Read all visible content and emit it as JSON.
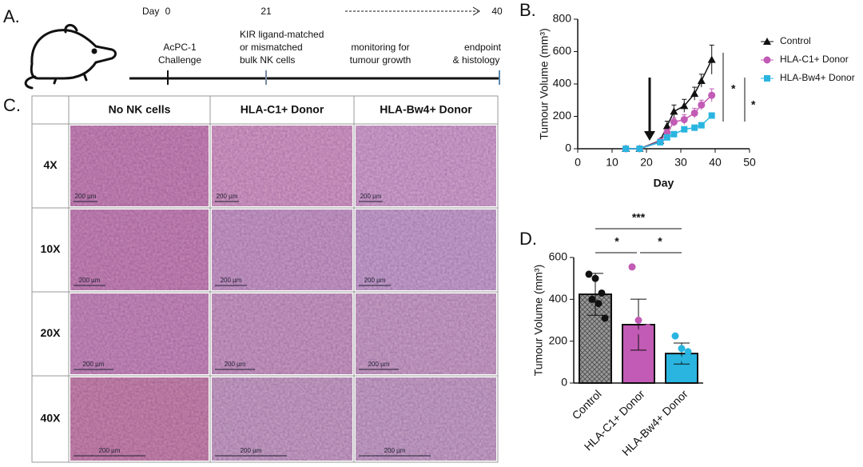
{
  "panel_labels": [
    "A.",
    "B.",
    "C.",
    "D."
  ],
  "timeline": {
    "day_label": "Day",
    "days": [
      0,
      21,
      40
    ],
    "steps": [
      [
        "AcPC-1",
        "Challenge"
      ],
      [
        "KIR ligand-matched",
        "or mismatched",
        "bulk NK cells"
      ],
      [
        "monitoring for",
        "tumour growth"
      ],
      [
        "endpoint",
        "& histology"
      ]
    ]
  },
  "histology": {
    "columns": [
      "No NK cells",
      "HLA-C1+ Donor",
      "HLA-Bw4+ Donor"
    ],
    "rows": [
      "4X",
      "10X",
      "20X",
      "40X"
    ],
    "scale_bars": [
      [
        "200 µm",
        "200 µm",
        "200 µm"
      ],
      [
        "200 µm",
        "200 µm",
        "200 µm"
      ],
      [
        "200 µm",
        "200 µm",
        "200 µm"
      ],
      [
        "200 µm",
        "200 µm",
        "200 µm"
      ]
    ]
  },
  "chart_data": [
    {
      "type": "line",
      "x_label": "Day",
      "y_label": "Tumour Volume (mm³)",
      "x": [
        14,
        18,
        24,
        26,
        28,
        31,
        34,
        36,
        39
      ],
      "series": [
        {
          "name": "Control",
          "color": "#111111",
          "marker": "triangle",
          "values": [
            0,
            0,
            50,
            140,
            230,
            265,
            340,
            420,
            550
          ],
          "errors": [
            0,
            0,
            10,
            30,
            40,
            40,
            40,
            40,
            90
          ]
        },
        {
          "name": "HLA-C1+ Donor",
          "color": "#c25bb5",
          "marker": "circle",
          "values": [
            0,
            0,
            45,
            100,
            165,
            180,
            220,
            270,
            330
          ],
          "errors": [
            0,
            0,
            10,
            20,
            25,
            30,
            30,
            30,
            40
          ]
        },
        {
          "name": "HLA-Bw4+ Donor",
          "color": "#29b5e0",
          "marker": "square",
          "values": [
            0,
            0,
            40,
            70,
            90,
            120,
            130,
            145,
            205
          ],
          "errors": [
            0,
            0,
            8,
            12,
            15,
            15,
            15,
            15,
            15
          ]
        }
      ],
      "xlim": [
        0,
        50
      ],
      "xticks": [
        0,
        10,
        20,
        30,
        40,
        50
      ],
      "ylim": [
        0,
        800
      ],
      "yticks": [
        0,
        200,
        400,
        600,
        800
      ],
      "annotations": [
        "*",
        "*"
      ]
    },
    {
      "type": "bar",
      "y_label": "Tumour Volume (mm³)",
      "categories": [
        "Control",
        "HLA-C1+ Donor",
        "HLA-Bw4+ Donor"
      ],
      "values": [
        424,
        279,
        141
      ],
      "errors": [
        100,
        122,
        50
      ],
      "colors": [
        "#8a8a8a",
        "#c25bb5",
        "#29b5e0"
      ],
      "point_colors": [
        "#111111",
        "#c25bb5",
        "#29b5e0"
      ],
      "points": [
        [
          520,
          500,
          430,
          400,
          380,
          310
        ],
        [
          555,
          300,
          260,
          250,
          240,
          265
        ],
        [
          225,
          165,
          150,
          120,
          110
        ]
      ],
      "ylim": [
        0,
        600
      ],
      "yticks": [
        0,
        200,
        400,
        600
      ],
      "annotations": [
        "***",
        "*",
        "*"
      ]
    }
  ]
}
